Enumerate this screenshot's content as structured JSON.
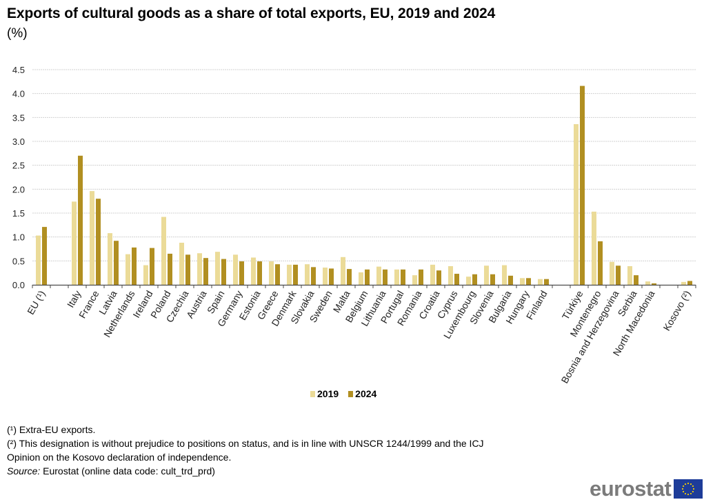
{
  "title": "Exports of cultural goods as a share of total exports, EU, 2019 and 2024",
  "subtitle": "(%)",
  "colors": {
    "series_2019": "#ebdb98",
    "series_2024": "#b18f21",
    "grid": "#d0d0d0",
    "axis": "#4a4a4a",
    "flag_blue": "#1d3c99",
    "flag_star": "#f5d000",
    "logo_text": "#7b7b7b"
  },
  "chart_data": {
    "type": "bar",
    "title": "Exports of cultural goods as a share of total exports, EU, 2019 and 2024",
    "subtitle": "(%)",
    "xlabel": "",
    "ylabel": "%",
    "ylim": [
      0,
      4.5
    ],
    "yticks": [
      "0.0",
      "0.5",
      "1.0",
      "1.5",
      "2.0",
      "2.5",
      "3.0",
      "3.5",
      "4.0",
      "4.5"
    ],
    "grid": true,
    "legend_position": "bottom-center",
    "categories": [
      "EU (¹)",
      "",
      "Italy",
      "France",
      "Latvia",
      "Netherlands",
      "Ireland",
      "Poland",
      "Czechia",
      "Austria",
      "Spain",
      "Germany",
      "Estonia",
      "Greece",
      "Denmark",
      "Slovakia",
      "Sweden",
      "Malta",
      "Belgium",
      "Lithuania",
      "Portugal",
      "Romania",
      "Croatia",
      "Cyprus",
      "Luxembourg",
      "Slovenia",
      "Bulgaria",
      "Hungary",
      "Finland",
      "",
      "Türkiye",
      "Montenegro",
      "Bosnia and Herzegovina",
      "Serbia",
      "North Macedonia",
      "",
      "Kosovo (²)"
    ],
    "series": [
      {
        "name": "2019",
        "values": [
          1.03,
          null,
          1.74,
          1.96,
          1.08,
          0.64,
          0.41,
          1.42,
          0.88,
          0.66,
          0.69,
          0.63,
          0.57,
          0.49,
          0.42,
          0.43,
          0.36,
          0.58,
          0.26,
          0.38,
          0.32,
          0.2,
          0.42,
          0.39,
          0.17,
          0.4,
          0.41,
          0.14,
          0.12,
          null,
          3.36,
          1.53,
          0.48,
          0.39,
          0.07,
          null,
          0.06
        ]
      },
      {
        "name": "2024",
        "values": [
          1.21,
          null,
          2.7,
          1.8,
          0.92,
          0.78,
          0.77,
          0.65,
          0.63,
          0.56,
          0.54,
          0.49,
          0.49,
          0.43,
          0.42,
          0.37,
          0.34,
          0.33,
          0.32,
          0.32,
          0.32,
          0.32,
          0.3,
          0.23,
          0.22,
          0.22,
          0.19,
          0.14,
          0.12,
          null,
          4.16,
          0.91,
          0.4,
          0.2,
          0.03,
          null,
          0.08
        ]
      }
    ]
  },
  "legend": [
    {
      "label": "2019"
    },
    {
      "label": "2024"
    }
  ],
  "footnotes": {
    "note1": "(¹) Extra-EU exports.",
    "note2_line1": "(²) This designation is without prejudice to positions on status, and is in line with UNSCR 1244/1999 and the ICJ",
    "note2_line2": "Opinion on the Kosovo declaration of independence.",
    "source_label": "Source:",
    "source_text": " Eurostat (online data code: cult_trd_prd)"
  },
  "logo": {
    "text": "eurostat"
  }
}
